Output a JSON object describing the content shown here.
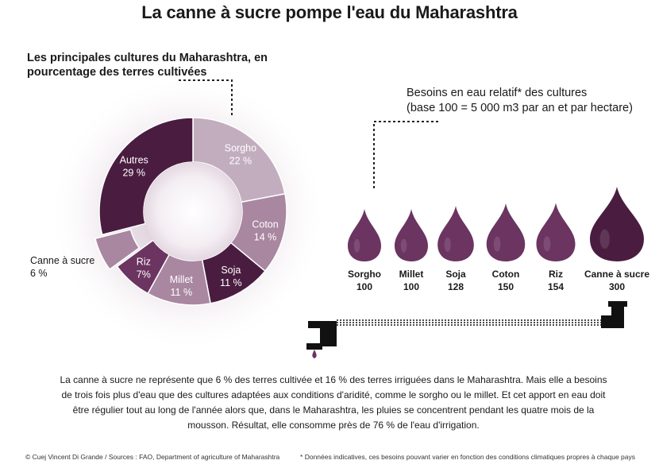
{
  "title": "La canne à sucre pompe l'eau du Maharashtra",
  "colors": {
    "dark": "#4a1d40",
    "medium": "#6b3461",
    "light": "#a987a0",
    "lighter": "#c2adbe",
    "background": "#ffffff",
    "text": "#1a1a1a"
  },
  "chart_data": [
    {
      "type": "pie",
      "variant": "donut",
      "title": "Les principales cultures du Maharashtra, en pourcentage des terres cultivées",
      "unit": "%",
      "slices": [
        {
          "name": "Sorgho",
          "label": "22 %",
          "value": 22,
          "color": "#c2adbe"
        },
        {
          "name": "Coton",
          "label": "14 %",
          "value": 14,
          "color": "#a987a0"
        },
        {
          "name": "Soja",
          "label": "11 %",
          "value": 11,
          "color": "#4a1d40"
        },
        {
          "name": "Millet",
          "label": "11 %",
          "value": 11,
          "color": "#a987a0"
        },
        {
          "name": "Riz",
          "label": "7%",
          "value": 7,
          "color": "#6b3461"
        },
        {
          "name": "Canne à sucre",
          "label": "6 %",
          "value": 6,
          "color": "#a987a0",
          "exploded": true
        },
        {
          "name": "Autres",
          "label": "29 %",
          "value": 29,
          "color": "#4a1d40"
        }
      ]
    },
    {
      "type": "bar",
      "variant": "drops",
      "title": "Besoins en eau relatif* des  cultures",
      "subtitle": "(base 100 = 5 000 m3 par an et par hectare)",
      "categories": [
        "Sorgho",
        "Millet",
        "Soja",
        "Coton",
        "Riz",
        "Canne à sucre"
      ],
      "values": [
        100,
        100,
        128,
        150,
        154,
        300
      ],
      "value_labels": [
        "100",
        "100",
        "128",
        "150",
        "154",
        "300"
      ]
    }
  ],
  "paragraph": "La canne à sucre ne représente que 6 % des terres cultivée et 16 % des terres irriguées dans le Maharashtra. Mais elle a besoins de trois fois plus d'eau que des cultures adaptées aux conditions d'aridité, comme le sorgho ou le millet. Et cet apport en eau doit être régulier tout au long de l'année alors que, dans le Maharashtra, les pluies se concentrent pendant les quatre mois de la mousson.  Résultat, elle consomme près de 76 % de l'eau d'irrigation.",
  "credits": {
    "left": "© Cuej  Vincent Di Grande / Sources : FAO, Department of agriculture of Maharashtra",
    "right": "* Données indicatives, ces besoins pouvant varier en fonction des conditions climatiques propres à chaque pays"
  }
}
